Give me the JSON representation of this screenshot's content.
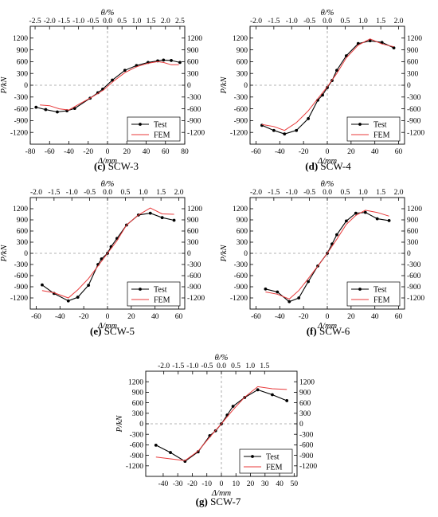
{
  "colors": {
    "test": "#000000",
    "fem": "#e8393a"
  },
  "chart_data": [
    {
      "type": "line",
      "caption_letter": "(c)",
      "caption_name": "SCW-3",
      "xlabel": "Δ/mm",
      "ylabel": "P/kN",
      "top_label": "θ/%",
      "xlim": [
        -80,
        80
      ],
      "ylim": [
        -1500,
        1500
      ],
      "x_ticks": [
        "-80",
        "-60",
        "-40",
        "-20",
        "0",
        "20",
        "40",
        "60",
        "80"
      ],
      "y_ticks": [
        "-1200",
        "-900",
        "-600",
        "-300",
        "0",
        "300",
        "600",
        "900",
        "1200"
      ],
      "y_ticks_right": [
        "-1200",
        "-900",
        "-600",
        "-300",
        "0",
        "300",
        "600",
        "900",
        "1200"
      ],
      "top_ticks": [
        "-2.5",
        "-2.0",
        "-1.5",
        "-1.0",
        "-0.5",
        "0.0",
        "0.5",
        "1.0",
        "1.5",
        "2.0",
        "2.5"
      ],
      "top_tick_pos": [
        -75,
        -60,
        -45,
        -30,
        -15,
        0,
        15,
        30,
        45,
        60,
        75
      ],
      "legend": [
        "Test",
        "FEM"
      ],
      "series": [
        {
          "name": "Test",
          "points": [
            [
              -74,
              -560
            ],
            [
              -64,
              -620
            ],
            [
              -52,
              -680
            ],
            [
              -42,
              -650
            ],
            [
              -34,
              -590
            ],
            [
              -18,
              -330
            ],
            [
              -10,
              -190
            ],
            [
              -5,
              -100
            ],
            [
              5,
              130
            ],
            [
              18,
              380
            ],
            [
              30,
              500
            ],
            [
              42,
              580
            ],
            [
              52,
              620
            ],
            [
              58,
              640
            ],
            [
              66,
              630
            ],
            [
              75,
              580
            ]
          ]
        },
        {
          "name": "FEM",
          "points": [
            [
              -70,
              -500
            ],
            [
              -60,
              -520
            ],
            [
              -50,
              -600
            ],
            [
              -40,
              -630
            ],
            [
              -28,
              -460
            ],
            [
              -16,
              -300
            ],
            [
              -4,
              -120
            ],
            [
              6,
              100
            ],
            [
              18,
              320
            ],
            [
              30,
              470
            ],
            [
              42,
              560
            ],
            [
              52,
              600
            ],
            [
              58,
              580
            ],
            [
              66,
              520
            ],
            [
              74,
              520
            ]
          ]
        }
      ]
    },
    {
      "type": "line",
      "caption_letter": "(d)",
      "caption_name": "SCW-4",
      "xlabel": "Δ/mm",
      "ylabel": "P/kN",
      "top_label": "θ/%",
      "xlim": [
        -65,
        65
      ],
      "ylim": [
        -1500,
        1500
      ],
      "x_ticks": [
        "-60",
        "-40",
        "-20",
        "0",
        "20",
        "40",
        "60"
      ],
      "y_ticks": [
        "-1200",
        "-900",
        "-600",
        "-300",
        "0",
        "300",
        "600",
        "900",
        "1200"
      ],
      "y_ticks_right": [
        "-1200",
        "-900",
        "-600",
        "-300",
        "0",
        "300",
        "600",
        "900",
        "1200"
      ],
      "top_ticks": [
        "-2.0",
        "-1.5",
        "-1.0",
        "-0.5",
        "0.0",
        "0.5",
        "1.0",
        "1.5",
        "2.0"
      ],
      "top_tick_pos": [
        -60,
        -45,
        -30,
        -15,
        0,
        15,
        30,
        45,
        60
      ],
      "legend": [
        "Test",
        "FEM"
      ],
      "series": [
        {
          "name": "Test",
          "points": [
            [
              -55,
              -1020
            ],
            [
              -45,
              -1150
            ],
            [
              -36,
              -1240
            ],
            [
              -26,
              -1150
            ],
            [
              -16,
              -850
            ],
            [
              -8,
              -380
            ],
            [
              -4,
              -250
            ],
            [
              0,
              -60
            ],
            [
              4,
              120
            ],
            [
              8,
              380
            ],
            [
              16,
              750
            ],
            [
              26,
              1060
            ],
            [
              36,
              1130
            ],
            [
              46,
              1090
            ],
            [
              56,
              950
            ]
          ]
        },
        {
          "name": "FEM",
          "points": [
            [
              -55,
              -1000
            ],
            [
              -45,
              -1050
            ],
            [
              -36,
              -1150
            ],
            [
              -26,
              -950
            ],
            [
              -16,
              -650
            ],
            [
              -8,
              -340
            ],
            [
              0,
              -40
            ],
            [
              8,
              300
            ],
            [
              16,
              700
            ],
            [
              26,
              1020
            ],
            [
              36,
              1180
            ],
            [
              46,
              1050
            ],
            [
              56,
              980
            ]
          ]
        }
      ]
    },
    {
      "type": "line",
      "caption_letter": "(e)",
      "caption_name": "SCW-5",
      "xlabel": "Δ/mm",
      "ylabel": "P/kN",
      "top_label": "θ/%",
      "xlim": [
        -65,
        65
      ],
      "ylim": [
        -1500,
        1500
      ],
      "x_ticks": [
        "-60",
        "-40",
        "-20",
        "0",
        "20",
        "40",
        "60"
      ],
      "y_ticks": [
        "-1200",
        "-900",
        "-600",
        "-300",
        "0",
        "300",
        "600",
        "900",
        "1200"
      ],
      "y_ticks_right": [
        "-1200",
        "-900",
        "-600",
        "-300",
        "0",
        "300",
        "600",
        "900",
        "1200"
      ],
      "top_ticks": [
        "-2.0",
        "-1.5",
        "-1.0",
        "-0.5",
        "0.0",
        "0.5",
        "1.0",
        "1.5",
        "2.0"
      ],
      "top_tick_pos": [
        -60,
        -45,
        -30,
        -15,
        0,
        15,
        30,
        45,
        60
      ],
      "legend": [
        "Test",
        "FEM"
      ],
      "series": [
        {
          "name": "Test",
          "points": [
            [
              -55,
              -850
            ],
            [
              -45,
              -1080
            ],
            [
              -33,
              -1280
            ],
            [
              -25,
              -1180
            ],
            [
              -16,
              -860
            ],
            [
              -8,
              -300
            ],
            [
              -5,
              -150
            ],
            [
              0,
              0
            ],
            [
              3,
              180
            ],
            [
              8,
              400
            ],
            [
              16,
              760
            ],
            [
              26,
              1030
            ],
            [
              36,
              1080
            ],
            [
              46,
              960
            ],
            [
              56,
              890
            ]
          ]
        },
        {
          "name": "FEM",
          "points": [
            [
              -55,
              -1000
            ],
            [
              -45,
              -1060
            ],
            [
              -33,
              -1200
            ],
            [
              -25,
              -980
            ],
            [
              -16,
              -680
            ],
            [
              -8,
              -340
            ],
            [
              0,
              0
            ],
            [
              8,
              340
            ],
            [
              16,
              760
            ],
            [
              26,
              1030
            ],
            [
              36,
              1220
            ],
            [
              46,
              1060
            ],
            [
              56,
              1050
            ]
          ]
        }
      ]
    },
    {
      "type": "line",
      "caption_letter": "(f)",
      "caption_name": "SCW-6",
      "xlabel": "Δ/mm",
      "ylabel": "P/kN",
      "top_label": "θ/%",
      "xlim": [
        -65,
        65
      ],
      "ylim": [
        -1500,
        1500
      ],
      "x_ticks": [
        "-60",
        "-40",
        "-20",
        "0",
        "20",
        "40",
        "60"
      ],
      "y_ticks": [
        "-1200",
        "-900",
        "-600",
        "-300",
        "0",
        "300",
        "600",
        "900",
        "1200"
      ],
      "y_ticks_right": [
        "-1200",
        "-900",
        "-600",
        "-300",
        "0",
        "300",
        "600",
        "900",
        "1200"
      ],
      "top_ticks": [
        "-2.0",
        "-1.5",
        "-1.0",
        "-0.5",
        "0.0",
        "0.5",
        "1.0",
        "1.5",
        "2.0"
      ],
      "top_tick_pos": [
        -60,
        -45,
        -30,
        -15,
        0,
        15,
        30,
        45,
        60
      ],
      "legend": [
        "Test",
        "FEM"
      ],
      "series": [
        {
          "name": "Test",
          "points": [
            [
              -52,
              -960
            ],
            [
              -42,
              -1040
            ],
            [
              -32,
              -1300
            ],
            [
              -24,
              -1200
            ],
            [
              -16,
              -760
            ],
            [
              -8,
              -340
            ],
            [
              0,
              0
            ],
            [
              4,
              250
            ],
            [
              8,
              500
            ],
            [
              16,
              870
            ],
            [
              24,
              1080
            ],
            [
              32,
              1100
            ],
            [
              42,
              930
            ],
            [
              52,
              880
            ]
          ]
        },
        {
          "name": "FEM",
          "points": [
            [
              -52,
              -1040
            ],
            [
              -42,
              -1100
            ],
            [
              -32,
              -1230
            ],
            [
              -24,
              -1000
            ],
            [
              -16,
              -680
            ],
            [
              -8,
              -340
            ],
            [
              0,
              0
            ],
            [
              8,
              380
            ],
            [
              16,
              780
            ],
            [
              24,
              1020
            ],
            [
              32,
              1160
            ],
            [
              42,
              1100
            ],
            [
              52,
              1000
            ]
          ]
        }
      ]
    },
    {
      "type": "line",
      "caption_letter": "(g)",
      "caption_name": "SCW-7",
      "xlabel": "Δ/mm",
      "ylabel": "P/kN",
      "top_label": "θ/%",
      "xlim": [
        -52,
        52
      ],
      "ylim": [
        -1500,
        1500
      ],
      "x_ticks": [
        "-40",
        "-30",
        "-20",
        "-10",
        "0",
        "10",
        "20",
        "30",
        "40",
        "50"
      ],
      "x_tick_pos": [
        -40,
        -30,
        -20,
        -10,
        0,
        10,
        20,
        30,
        40,
        50
      ],
      "y_ticks": [
        "-1200",
        "-900",
        "-600",
        "-300",
        "0",
        "300",
        "600",
        "900",
        "1200"
      ],
      "y_ticks_right": [
        "-1200",
        "-900",
        "-600",
        "-300",
        "0",
        "300",
        "600",
        "900",
        "1200"
      ],
      "top_ticks": [
        "-2.0",
        "-1.5",
        "-1.0",
        "-0.5",
        "0.0",
        "0.5",
        "1.0",
        "1.5"
      ],
      "top_tick_pos": [
        -60,
        -45,
        -30,
        -15,
        0,
        15,
        30,
        45
      ],
      "top_scale": 0.66,
      "legend": [
        "Test",
        "FEM"
      ],
      "series": [
        {
          "name": "Test",
          "points": [
            [
              -45,
              -610
            ],
            [
              -35,
              -820
            ],
            [
              -25,
              -1070
            ],
            [
              -16,
              -800
            ],
            [
              -8,
              -340
            ],
            [
              -4,
              -200
            ],
            [
              0,
              0
            ],
            [
              4,
              250
            ],
            [
              8,
              500
            ],
            [
              16,
              750
            ],
            [
              25,
              970
            ],
            [
              35,
              830
            ],
            [
              45,
              660
            ]
          ]
        },
        {
          "name": "FEM",
          "points": [
            [
              -45,
              -950
            ],
            [
              -35,
              -1000
            ],
            [
              -25,
              -1050
            ],
            [
              -16,
              -780
            ],
            [
              -8,
              -380
            ],
            [
              0,
              0
            ],
            [
              8,
              400
            ],
            [
              16,
              760
            ],
            [
              25,
              1060
            ],
            [
              35,
              1000
            ],
            [
              45,
              980
            ]
          ]
        }
      ]
    }
  ]
}
